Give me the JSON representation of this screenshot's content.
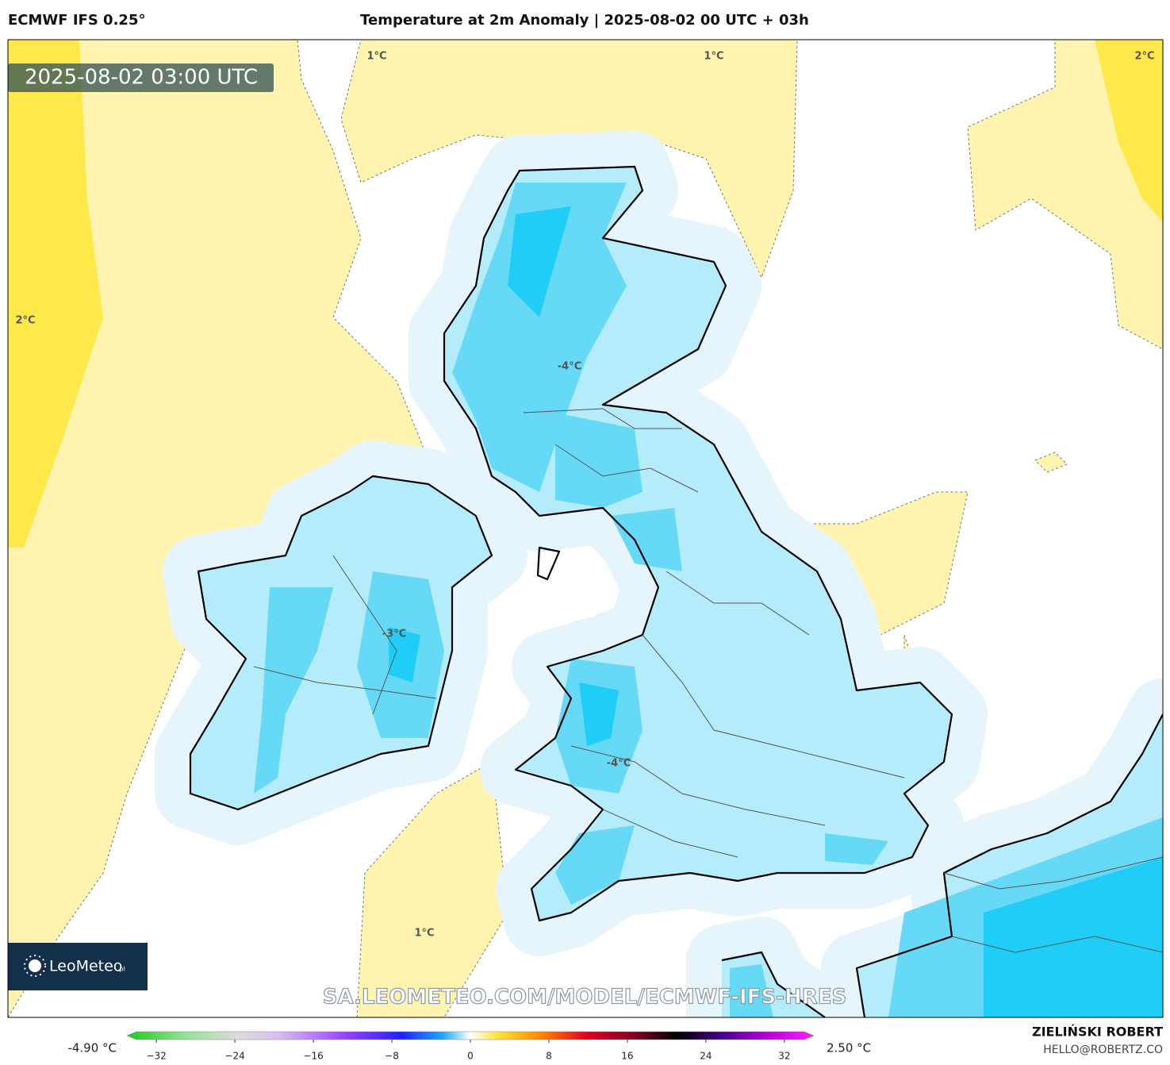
{
  "header": {
    "model": "ECMWF IFS 0.25°",
    "title": "Temperature at 2m Anomaly | 2025-08-02 00 UTC + 03h"
  },
  "valid_time": "2025-08-02 03:00 UTC",
  "contour_labels": [
    "1°C",
    "1°C",
    "2°C",
    "2°C",
    "-4°C",
    "-3°C",
    "-4°C",
    "1°C"
  ],
  "logo": {
    "name": "LeoMeteo",
    "domain": ".pl"
  },
  "source_url": "SA.LEOMETEO.COM/MODEL/ECMWF-IFS-HRES",
  "colorbar": {
    "min_label": "-4.90 °C",
    "max_label": "2.50 °C",
    "lim": [
      -35,
      35
    ],
    "ticks": [
      {
        "value": -32,
        "label": "−32"
      },
      {
        "value": -24,
        "label": "−24"
      },
      {
        "value": -16,
        "label": "−16"
      },
      {
        "value": -8,
        "label": "−8"
      },
      0,
      8,
      16,
      24,
      32
    ]
  },
  "footer": {
    "author": "ZIELIŃSKI ROBERT",
    "contact": "HELLO@ROBERTZ.CO"
  }
}
